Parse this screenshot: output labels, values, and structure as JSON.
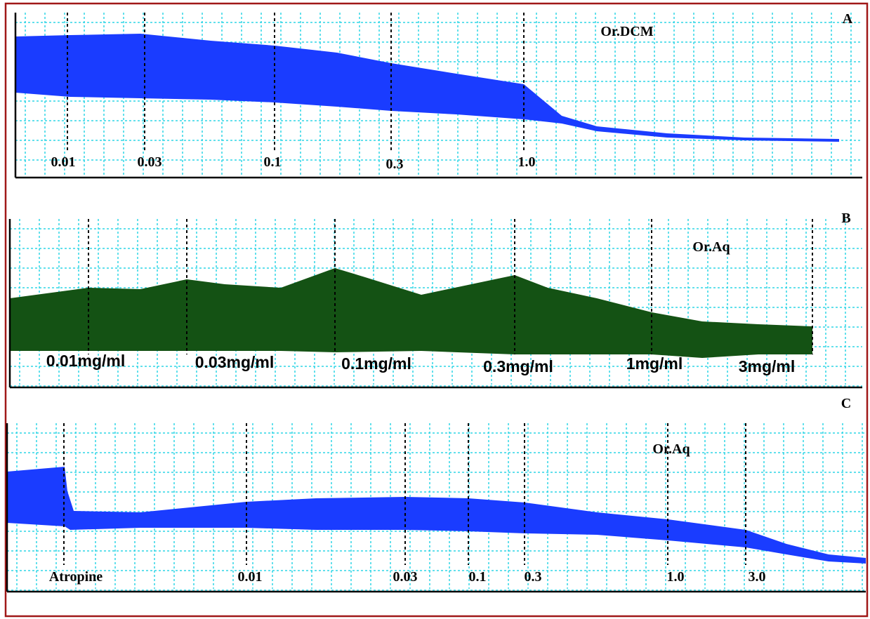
{
  "panels": [
    {
      "letter": "A",
      "title": "Or.DCM",
      "markers": [
        "0.01",
        "0.03",
        "0.1",
        "0.3",
        "1.0"
      ]
    },
    {
      "letter": "B",
      "title": "Or.Aq",
      "markers": [
        "0.01mg/ml",
        "0.03mg/ml",
        "0.1mg/ml",
        "0.3mg/ml",
        "1mg/ml",
        "3mg/ml"
      ]
    },
    {
      "letter": "C",
      "title": "Or.Aq",
      "markers": [
        "Atropine",
        "0.01",
        "0.03",
        "0.1",
        "0.3",
        "1.0",
        "3.0"
      ]
    }
  ]
}
